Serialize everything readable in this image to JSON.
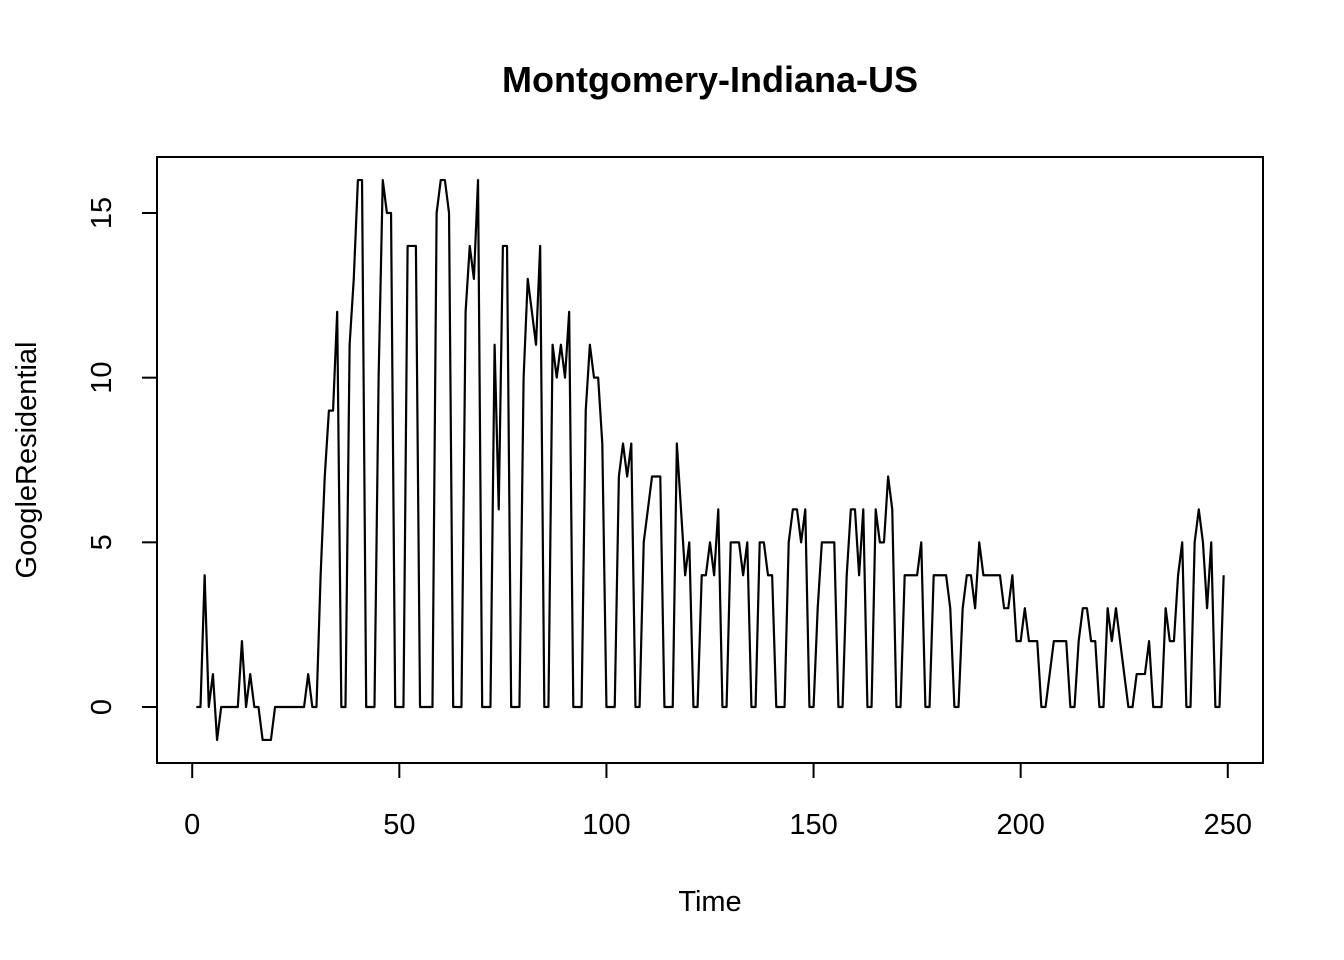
{
  "chart_data": {
    "type": "line",
    "title": "Montgomery-Indiana-US",
    "xlabel": "Time",
    "ylabel": "GoogleResidential",
    "xlim": [
      -8.5,
      258.5
    ],
    "ylim": [
      -1.7,
      16.7
    ],
    "x_ticks": [
      {
        "value": 0,
        "label": "0"
      },
      {
        "value": 50,
        "label": "50"
      },
      {
        "value": 100,
        "label": "100"
      },
      {
        "value": 150,
        "label": "150"
      },
      {
        "value": 200,
        "label": "200"
      },
      {
        "value": 250,
        "label": "250"
      }
    ],
    "y_ticks": [
      {
        "value": 0,
        "label": "0"
      },
      {
        "value": 5,
        "label": "5"
      },
      {
        "value": 10,
        "label": "10"
      },
      {
        "value": 15,
        "label": "15"
      }
    ],
    "grid": false,
    "series": [
      {
        "color": "#000000",
        "x_start": 1,
        "values": [
          0,
          0,
          4,
          0,
          1,
          -1,
          0,
          0,
          0,
          0,
          0,
          2,
          0,
          1,
          0,
          0,
          -1,
          -1,
          -1,
          0,
          0,
          0,
          0,
          0,
          0,
          0,
          0,
          1,
          0,
          0,
          4,
          7,
          9,
          9,
          12,
          0,
          0,
          11,
          13,
          16,
          16,
          0,
          0,
          0,
          10,
          16,
          15,
          15,
          0,
          0,
          0,
          14,
          14,
          14,
          0,
          0,
          0,
          0,
          15,
          16,
          16,
          15,
          0,
          0,
          0,
          12,
          14,
          13,
          16,
          0,
          0,
          0,
          11,
          6,
          14,
          14,
          0,
          0,
          0,
          10,
          13,
          12,
          11,
          14,
          0,
          0,
          11,
          10,
          11,
          10,
          12,
          0,
          0,
          0,
          9,
          11,
          10,
          10,
          8,
          0,
          0,
          0,
          7,
          8,
          7,
          8,
          0,
          0,
          5,
          6,
          7,
          7,
          7,
          0,
          0,
          0,
          8,
          6,
          4,
          5,
          0,
          0,
          4,
          4,
          5,
          4,
          6,
          0,
          0,
          5,
          5,
          5,
          4,
          5,
          0,
          0,
          5,
          5,
          4,
          4,
          0,
          0,
          0,
          5,
          6,
          6,
          5,
          6,
          0,
          0,
          3,
          5,
          5,
          5,
          5,
          0,
          0,
          4,
          6,
          6,
          4,
          6,
          0,
          0,
          6,
          5,
          5,
          7,
          6,
          0,
          0,
          4,
          4,
          4,
          4,
          5,
          0,
          0,
          4,
          4,
          4,
          4,
          3,
          0,
          0,
          3,
          4,
          4,
          3,
          5,
          4,
          4,
          4,
          4,
          4,
          3,
          3,
          4,
          2,
          2,
          3,
          2,
          2,
          2,
          0,
          0,
          1,
          2,
          2,
          2,
          2,
          0,
          0,
          2,
          3,
          3,
          2,
          2,
          0,
          0,
          3,
          2,
          3,
          2,
          1,
          0,
          0,
          1,
          1,
          1,
          2,
          0,
          0,
          0,
          3,
          2,
          2,
          4,
          5,
          0,
          0,
          5,
          6,
          5,
          3,
          5,
          0,
          0,
          4
        ]
      }
    ]
  }
}
